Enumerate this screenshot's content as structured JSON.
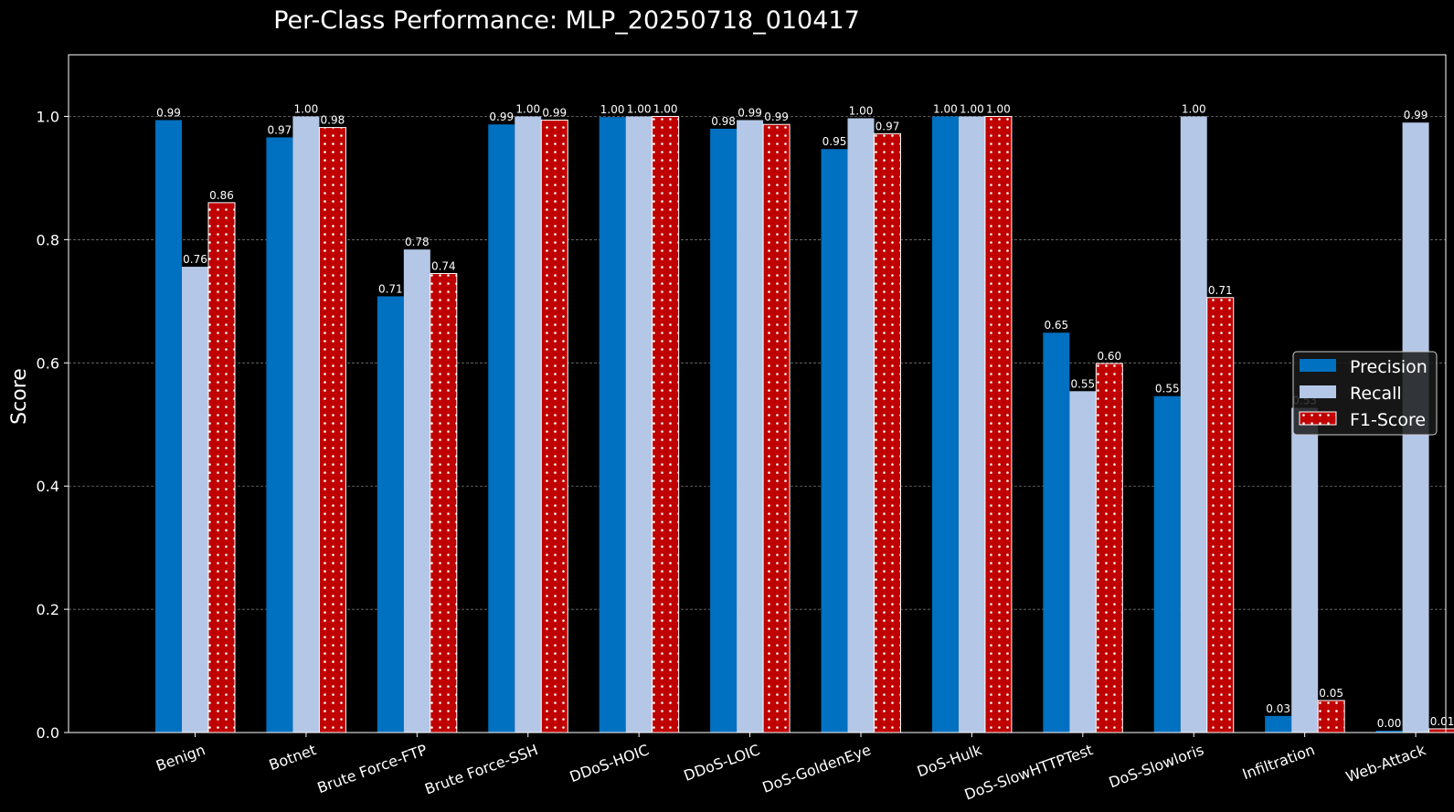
{
  "chart_data": {
    "type": "bar",
    "title": "Per-Class Performance: MLP_20250718_010417",
    "ylabel": "Score",
    "xlabel": "",
    "ylim": [
      0,
      1.1
    ],
    "yticks": [
      "0.0",
      "0.2",
      "0.4",
      "0.6",
      "0.8",
      "1.0"
    ],
    "grid": "horizontal dashed",
    "legend_position": "center-right",
    "categories": [
      "Benign",
      "Botnet",
      "Brute Force-FTP",
      "Brute Force-SSH",
      "DDoS-HOIC",
      "DDoS-LOIC",
      "DoS-GoldenEye",
      "DoS-Hulk",
      "DoS-SlowHTTPTest",
      "DoS-Slowloris",
      "Infiltration",
      "Web-Attack"
    ],
    "series": [
      {
        "name": "Precision",
        "color": "#0070c0",
        "pattern": "solid",
        "values": [
          0.994,
          0.966,
          0.708,
          0.987,
          0.999,
          0.98,
          0.947,
          1.0,
          0.649,
          0.546,
          0.027,
          0.003
        ],
        "labels": [
          "0.99",
          "0.97",
          "0.71",
          "0.99",
          "1.00",
          "0.98",
          "0.95",
          "1.00",
          "0.65",
          "0.55",
          "0.03",
          "0.00"
        ]
      },
      {
        "name": "Recall",
        "color": "#b4c7e7",
        "pattern": "solid",
        "values": [
          0.756,
          1.0,
          0.784,
          1.0,
          1.0,
          0.994,
          0.997,
          1.0,
          0.554,
          1.0,
          0.527,
          0.99
        ],
        "labels": [
          "0.76",
          "1.00",
          "0.78",
          "1.00",
          "1.00",
          "0.99",
          "1.00",
          "1.00",
          "0.55",
          "1.00",
          "0.53",
          "0.99"
        ]
      },
      {
        "name": "F1-Score",
        "color": "#c00000",
        "pattern": "dotted",
        "values": [
          0.86,
          0.982,
          0.745,
          0.994,
          1.0,
          0.987,
          0.972,
          1.0,
          0.599,
          0.706,
          0.052,
          0.006
        ],
        "labels": [
          "0.86",
          "0.98",
          "0.74",
          "0.99",
          "1.00",
          "0.99",
          "0.97",
          "1.00",
          "0.60",
          "0.71",
          "0.05",
          "0.01"
        ]
      }
    ]
  }
}
